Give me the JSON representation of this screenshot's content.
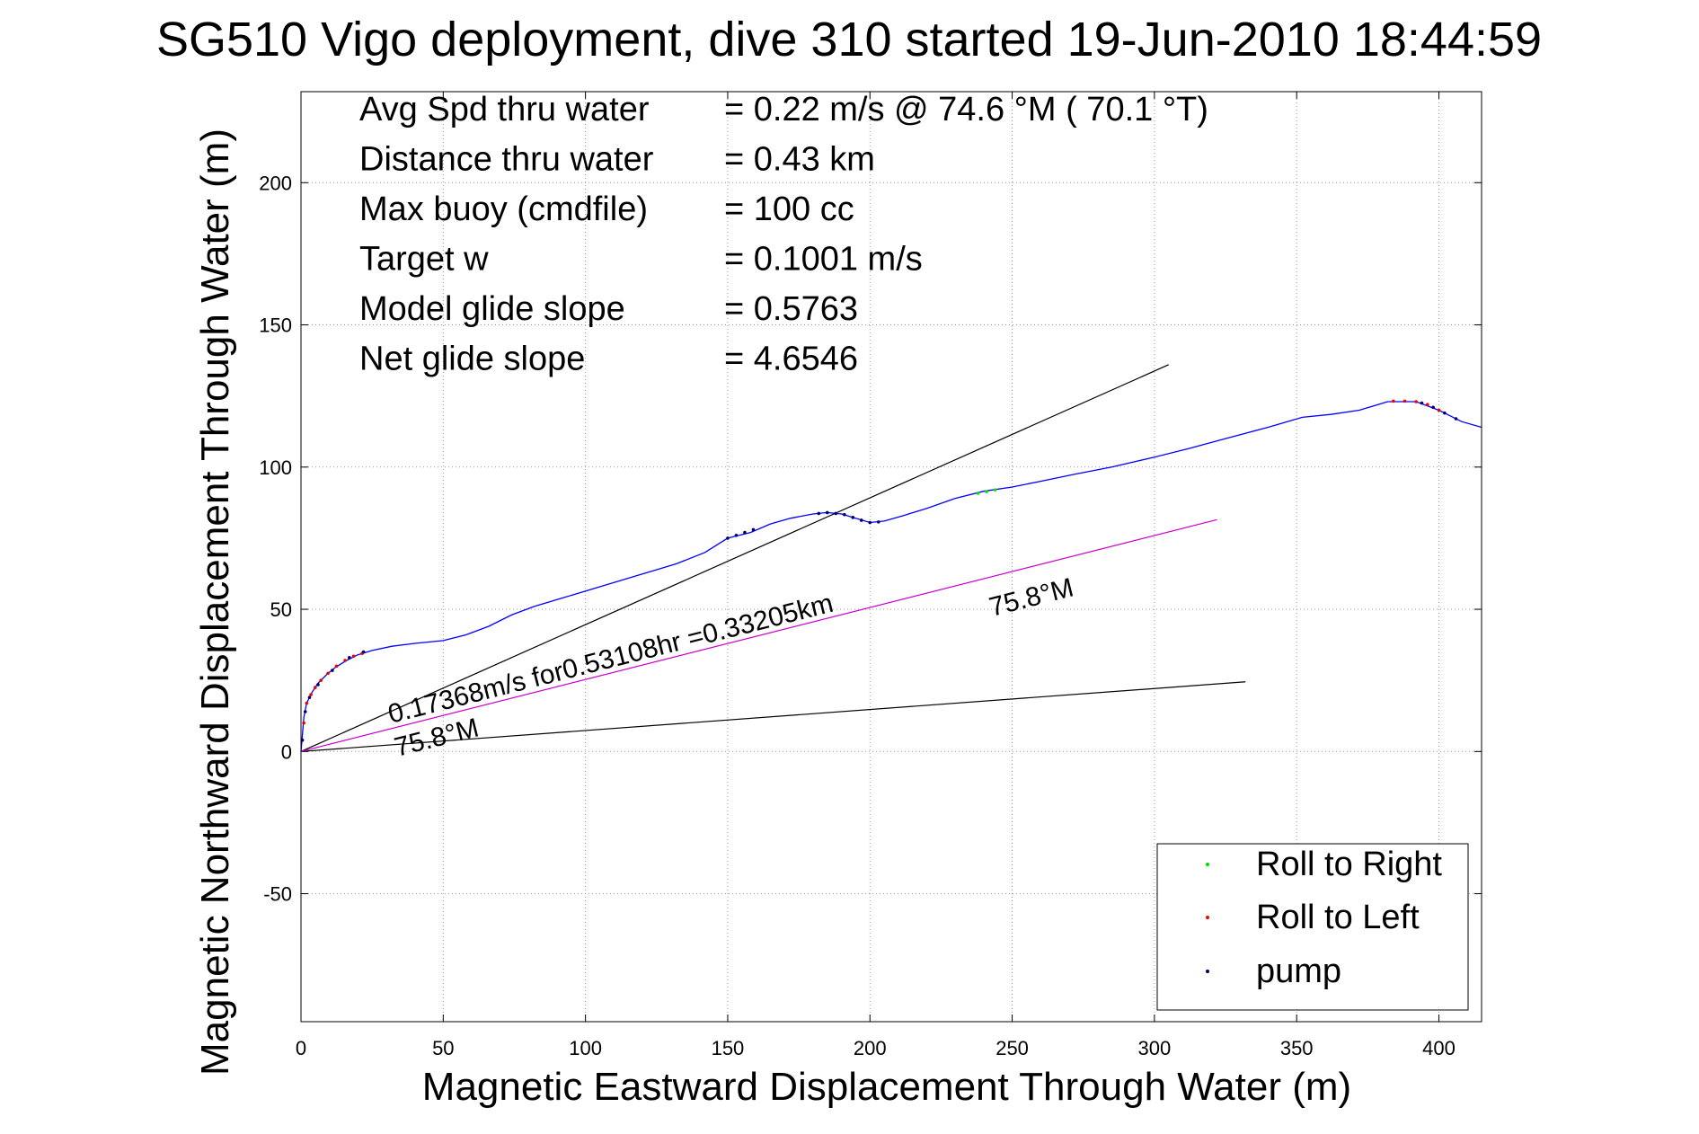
{
  "chart_data": {
    "type": "line",
    "title": "SG510 Vigo deployment, dive 310 started 19-Jun-2010 18:44:59",
    "xlabel": "Magnetic Eastward Displacement Through Water (m)",
    "ylabel": "Magnetic Northward Displacement Through Water (m)",
    "xlim": [
      0,
      415
    ],
    "ylim": [
      -95,
      232
    ],
    "xticks": [
      0,
      50,
      100,
      150,
      200,
      250,
      300,
      350,
      400
    ],
    "yticks": [
      -50,
      0,
      50,
      100,
      150,
      200
    ],
    "grid": true,
    "legend_position": "bottom-right",
    "info": [
      {
        "label": "Avg Spd thru water",
        "value": "=  0.22 m/s @  74.6 °M ( 70.1 °T)"
      },
      {
        "label": "Distance thru water",
        "value": "=  0.43 km"
      },
      {
        "label": "Max buoy (cmdfile)",
        "value": "= 100 cc"
      },
      {
        "label": "Target w",
        "value": "= 0.1001 m/s"
      },
      {
        "label": "Model glide slope",
        "value": "= 0.5763"
      },
      {
        "label": "Net glide slope",
        "value": "= 4.6546"
      }
    ],
    "annotations": {
      "current_text": "0.17368m/s for0.53108hr =0.33205km",
      "heading_end": "75.8°M",
      "heading_origin": "75.8°M"
    },
    "track": {
      "color": "#0000ff",
      "points": [
        [
          0,
          0
        ],
        [
          0.5,
          6
        ],
        [
          1,
          12
        ],
        [
          2,
          17
        ],
        [
          4,
          21
        ],
        [
          6,
          24
        ],
        [
          9,
          27
        ],
        [
          12,
          29.5
        ],
        [
          16,
          32
        ],
        [
          20,
          34
        ],
        [
          25,
          35.5
        ],
        [
          32,
          37
        ],
        [
          40,
          38
        ],
        [
          50,
          39
        ],
        [
          58,
          41
        ],
        [
          66,
          44
        ],
        [
          74,
          48
        ],
        [
          82,
          51
        ],
        [
          92,
          54
        ],
        [
          102,
          57
        ],
        [
          112,
          60
        ],
        [
          122,
          63
        ],
        [
          132,
          66
        ],
        [
          142,
          70
        ],
        [
          150,
          75
        ],
        [
          158,
          77
        ],
        [
          165,
          80
        ],
        [
          172,
          82
        ],
        [
          180,
          83.5
        ],
        [
          185,
          84
        ],
        [
          190,
          83.5
        ],
        [
          195,
          82
        ],
        [
          200,
          80.5
        ],
        [
          205,
          81
        ],
        [
          212,
          83
        ],
        [
          220,
          85.5
        ],
        [
          230,
          89
        ],
        [
          240,
          91.5
        ],
        [
          250,
          93
        ],
        [
          260,
          95
        ],
        [
          272,
          97.5
        ],
        [
          285,
          100
        ],
        [
          300,
          103.5
        ],
        [
          312,
          106.5
        ],
        [
          325,
          110
        ],
        [
          340,
          114
        ],
        [
          352,
          117.5
        ],
        [
          362,
          118.5
        ],
        [
          372,
          120
        ],
        [
          382,
          123
        ],
        [
          392,
          123
        ],
        [
          400,
          120
        ],
        [
          408,
          116
        ],
        [
          415,
          114
        ]
      ]
    },
    "reference_lines": [
      {
        "name": "glide-line-upper",
        "color": "#000000",
        "x": [
          0,
          305
        ],
        "y": [
          0,
          136
        ]
      },
      {
        "name": "glide-line-lower",
        "color": "#000000",
        "x": [
          0,
          332
        ],
        "y": [
          0,
          24.5
        ]
      },
      {
        "name": "current-vector",
        "color": "#cc00cc",
        "x": [
          0,
          322
        ],
        "y": [
          0,
          81.5
        ]
      }
    ],
    "series": [
      {
        "name": "Roll to Right",
        "color": "#00dd00",
        "points": [
          [
            238,
            90.8
          ],
          [
            241,
            91.4
          ],
          [
            244,
            92
          ]
        ]
      },
      {
        "name": "Roll to Left",
        "color": "#ee0000",
        "points": [
          [
            1,
            10
          ],
          [
            2,
            17
          ],
          [
            3.5,
            20
          ],
          [
            5,
            22.5
          ],
          [
            7,
            25
          ],
          [
            9.5,
            27.5
          ],
          [
            12.5,
            30
          ],
          [
            15.5,
            32
          ],
          [
            18.5,
            33.5
          ],
          [
            21.5,
            34.5
          ],
          [
            384,
            123.2
          ],
          [
            388,
            123.2
          ],
          [
            392,
            123
          ],
          [
            396,
            122
          ],
          [
            400,
            120
          ]
        ]
      },
      {
        "name": "pump",
        "color": "#000066",
        "points": [
          [
            0.5,
            4
          ],
          [
            1.5,
            14
          ],
          [
            3,
            19
          ],
          [
            6,
            23.5
          ],
          [
            11,
            28.5
          ],
          [
            17,
            33
          ],
          [
            22,
            35
          ],
          [
            150,
            75
          ],
          [
            153,
            76
          ],
          [
            156,
            77
          ],
          [
            159,
            78
          ],
          [
            182,
            83.7
          ],
          [
            185,
            84
          ],
          [
            188,
            83.7
          ],
          [
            191,
            83.3
          ],
          [
            194,
            82.3
          ],
          [
            197,
            81.3
          ],
          [
            200,
            80.5
          ],
          [
            203,
            80.7
          ],
          [
            394,
            122.5
          ],
          [
            398,
            121
          ],
          [
            402,
            119
          ],
          [
            406,
            117
          ]
        ]
      }
    ]
  }
}
